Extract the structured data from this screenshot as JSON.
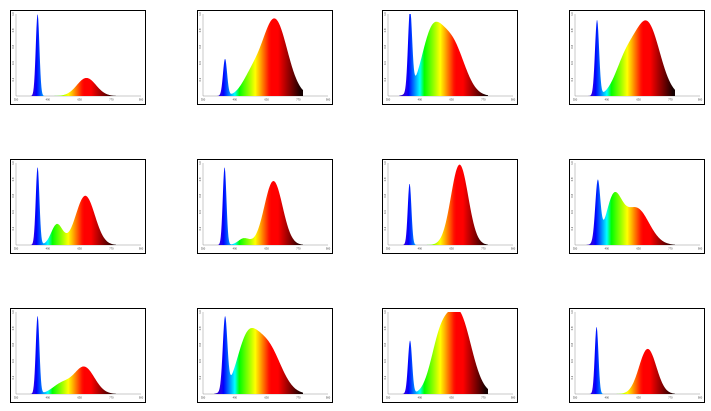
{
  "chart_data": [
    {
      "type": "area",
      "x_ticks": [
        "350",
        "490",
        "630",
        "770",
        "900"
      ],
      "y_ticks": [
        "0.2",
        "0.4",
        "0.6",
        "0.8",
        "1.0"
      ],
      "xlim": [
        350,
        900
      ],
      "ylim": [
        0,
        1.0
      ],
      "peaks": [
        {
          "center": 445,
          "height": 1.0,
          "width": 8
        },
        {
          "center": 660,
          "height": 0.22,
          "width": 42
        }
      ]
    },
    {
      "type": "area",
      "x_ticks": [
        "350",
        "490",
        "630",
        "770",
        "900"
      ],
      "y_ticks": [
        "0.2",
        "0.4",
        "0.6",
        "0.8",
        "1.0"
      ],
      "xlim": [
        350,
        900
      ],
      "ylim": [
        0,
        1.0
      ],
      "peaks": [
        {
          "center": 447,
          "height": 0.45,
          "width": 9
        },
        {
          "center": 560,
          "height": 0.2,
          "width": 40
        },
        {
          "center": 665,
          "height": 0.94,
          "width": 55
        }
      ]
    },
    {
      "type": "area",
      "x_ticks": [
        "350",
        "490",
        "630",
        "770",
        "900"
      ],
      "y_ticks": [
        "0.2",
        "0.4",
        "0.6",
        "0.8",
        "1.0"
      ],
      "xlim": [
        350,
        900
      ],
      "ylim": [
        0,
        1.0
      ],
      "peaks": [
        {
          "center": 447,
          "height": 0.98,
          "width": 9
        },
        {
          "center": 540,
          "height": 0.68,
          "width": 45
        },
        {
          "center": 630,
          "height": 0.65,
          "width": 55
        }
      ]
    },
    {
      "type": "area",
      "x_ticks": [
        "350",
        "490",
        "630",
        "770",
        "900"
      ],
      "y_ticks": [
        "0.2",
        "0.4",
        "0.6",
        "0.8",
        "1.0"
      ],
      "xlim": [
        350,
        900
      ],
      "ylim": [
        0,
        1.0
      ],
      "peaks": [
        {
          "center": 447,
          "height": 0.92,
          "width": 9
        },
        {
          "center": 570,
          "height": 0.38,
          "width": 45
        },
        {
          "center": 668,
          "height": 0.88,
          "width": 55
        }
      ]
    },
    {
      "type": "area",
      "x_ticks": [
        "350",
        "490",
        "630",
        "770",
        "900"
      ],
      "y_ticks": [
        "0.2",
        "0.4",
        "0.6",
        "0.8",
        "1.0"
      ],
      "xlim": [
        350,
        900
      ],
      "ylim": [
        0,
        1.0
      ],
      "peaks": [
        {
          "center": 445,
          "height": 0.95,
          "width": 8
        },
        {
          "center": 530,
          "height": 0.25,
          "width": 25
        },
        {
          "center": 655,
          "height": 0.6,
          "width": 42
        }
      ]
    },
    {
      "type": "area",
      "x_ticks": [
        "350",
        "490",
        "630",
        "770",
        "900"
      ],
      "y_ticks": [
        "0.2",
        "0.4",
        "0.6",
        "0.8",
        "1.0"
      ],
      "xlim": [
        350,
        900
      ],
      "ylim": [
        0,
        1.0
      ],
      "peaks": [
        {
          "center": 445,
          "height": 0.95,
          "width": 8
        },
        {
          "center": 530,
          "height": 0.08,
          "width": 25
        },
        {
          "center": 660,
          "height": 0.78,
          "width": 40
        }
      ]
    },
    {
      "type": "area",
      "x_ticks": [
        "350",
        "490",
        "630",
        "770",
        "900"
      ],
      "y_ticks": [
        "0.2",
        "0.4",
        "0.6",
        "0.8",
        "1.0"
      ],
      "xlim": [
        350,
        900
      ],
      "ylim": [
        0,
        1.0
      ],
      "peaks": [
        {
          "center": 445,
          "height": 0.75,
          "width": 8
        },
        {
          "center": 665,
          "height": 0.98,
          "width": 38
        }
      ]
    },
    {
      "type": "area",
      "x_ticks": [
        "350",
        "490",
        "630",
        "770",
        "900"
      ],
      "y_ticks": [
        "0.2",
        "0.4",
        "0.6",
        "0.8",
        "1.0"
      ],
      "xlim": [
        350,
        900
      ],
      "ylim": [
        0,
        1.0
      ],
      "peaks": [
        {
          "center": 450,
          "height": 0.72,
          "width": 11
        },
        {
          "center": 520,
          "height": 0.55,
          "width": 35
        },
        {
          "center": 620,
          "height": 0.45,
          "width": 55
        }
      ]
    },
    {
      "type": "area",
      "x_ticks": [
        "350",
        "490",
        "630",
        "770",
        "900"
      ],
      "y_ticks": [
        "0.2",
        "0.4",
        "0.6",
        "0.8",
        "1.0"
      ],
      "xlim": [
        350,
        900
      ],
      "ylim": [
        0,
        1.0
      ],
      "peaks": [
        {
          "center": 445,
          "height": 0.95,
          "width": 8
        },
        {
          "center": 550,
          "height": 0.12,
          "width": 40
        },
        {
          "center": 650,
          "height": 0.33,
          "width": 45
        }
      ]
    },
    {
      "type": "area",
      "x_ticks": [
        "350",
        "490",
        "630",
        "770",
        "900"
      ],
      "y_ticks": [
        "0.2",
        "0.4",
        "0.6",
        "0.8",
        "1.0"
      ],
      "xlim": [
        350,
        900
      ],
      "ylim": [
        0,
        1.0
      ],
      "peaks": [
        {
          "center": 447,
          "height": 0.88,
          "width": 10
        },
        {
          "center": 540,
          "height": 0.55,
          "width": 45
        },
        {
          "center": 630,
          "height": 0.6,
          "width": 60
        }
      ]
    },
    {
      "type": "area",
      "x_ticks": [
        "350",
        "490",
        "630",
        "770",
        "900"
      ],
      "y_ticks": [
        "0.2",
        "0.4",
        "0.6",
        "0.8",
        "1.0"
      ],
      "xlim": [
        350,
        900
      ],
      "ylim": [
        0,
        1.0
      ],
      "peaks": [
        {
          "center": 447,
          "height": 0.65,
          "width": 9
        },
        {
          "center": 575,
          "height": 0.5,
          "width": 40
        },
        {
          "center": 660,
          "height": 0.98,
          "width": 55
        }
      ]
    },
    {
      "type": "area",
      "x_ticks": [
        "350",
        "490",
        "630",
        "770",
        "900"
      ],
      "y_ticks": [
        "0.2",
        "0.4",
        "0.6",
        "0.8",
        "1.0"
      ],
      "xlim": [
        350,
        900
      ],
      "ylim": [
        0,
        1.0
      ],
      "peaks": [
        {
          "center": 445,
          "height": 0.82,
          "width": 8
        },
        {
          "center": 670,
          "height": 0.55,
          "width": 38
        }
      ]
    }
  ]
}
